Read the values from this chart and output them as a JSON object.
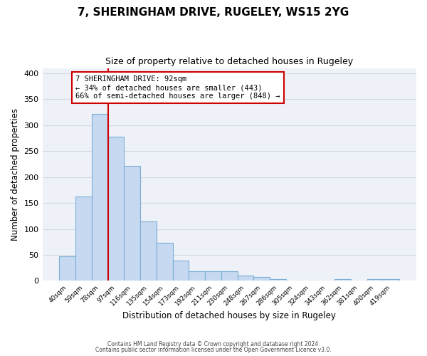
{
  "title": "7, SHERINGHAM DRIVE, RUGELEY, WS15 2YG",
  "subtitle": "Size of property relative to detached houses in Rugeley",
  "xlabel": "Distribution of detached houses by size in Rugeley",
  "ylabel": "Number of detached properties",
  "footer_line1": "Contains HM Land Registry data © Crown copyright and database right 2024.",
  "footer_line2": "Contains public sector information licensed under the Open Government Licence v3.0.",
  "bar_labels": [
    "40sqm",
    "59sqm",
    "78sqm",
    "97sqm",
    "116sqm",
    "135sqm",
    "154sqm",
    "173sqm",
    "192sqm",
    "211sqm",
    "230sqm",
    "248sqm",
    "267sqm",
    "286sqm",
    "305sqm",
    "324sqm",
    "343sqm",
    "362sqm",
    "381sqm",
    "400sqm",
    "419sqm"
  ],
  "bar_values": [
    47,
    163,
    322,
    278,
    221,
    114,
    73,
    39,
    18,
    18,
    18,
    10,
    7,
    3,
    0,
    0,
    0,
    3,
    0,
    3,
    3
  ],
  "bar_color": "#c6d9f0",
  "bar_edge_color": "#7badd6",
  "vline_x_index": 2.5,
  "vline_color": "#cc0000",
  "annotation_text": "7 SHERINGHAM DRIVE: 92sqm\n← 34% of detached houses are smaller (443)\n66% of semi-detached houses are larger (848) →",
  "annotation_box_color": "#ffffff",
  "annotation_box_edge": "#cc0000",
  "ylim": [
    0,
    410
  ],
  "yticks": [
    0,
    50,
    100,
    150,
    200,
    250,
    300,
    350,
    400
  ],
  "grid_color": "#d0d8e8",
  "background_color": "#ffffff",
  "plot_bg_color": "#eef2f8"
}
